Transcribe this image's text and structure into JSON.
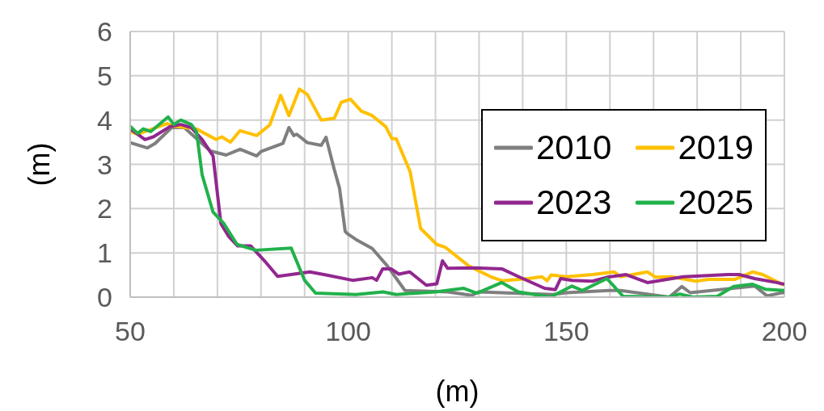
{
  "chart_data": {
    "type": "line",
    "xlabel": "(m)",
    "ylabel": "(m)",
    "xlim": [
      50,
      200
    ],
    "xticks": [
      50,
      {
        "value": 60,
        "label": null
      },
      {
        "value": 70,
        "label": null
      },
      {
        "value": 80,
        "label": null
      },
      {
        "value": 90,
        "label": null
      },
      100,
      {
        "value": 110,
        "label": null
      },
      {
        "value": 120,
        "label": null
      },
      {
        "value": 130,
        "label": null
      },
      {
        "value": 140,
        "label": null
      },
      150,
      {
        "value": 160,
        "label": null
      },
      {
        "value": 170,
        "label": null
      },
      {
        "value": 180,
        "label": null
      },
      {
        "value": 190,
        "label": null
      },
      200
    ],
    "ylim": [
      0,
      6
    ],
    "yticks": [
      0,
      1,
      2,
      3,
      4,
      5,
      6
    ],
    "grid": true,
    "legend": "right",
    "marker": "none",
    "line_style": "solid",
    "series": [
      {
        "name": "2010",
        "color": "#7f7f7f",
        "x": [
          50,
          53.9,
          55.7,
          59.5,
          62.4,
          68.4,
          72,
          75.2,
          79,
          80,
          85,
          86.4,
          87.5,
          88.2,
          90.6,
          93.8,
          94.9,
          96.8,
          98,
          99.3,
          100,
          101.8,
          105.5,
          109,
          113,
          122.8,
          128.3,
          130,
          140,
          147,
          150,
          159.8,
          162.4,
          173.6,
          176.5,
          178.4,
          193.2,
          196,
          199.5,
          200
        ],
        "values": [
          3.49,
          3.37,
          3.47,
          3.83,
          3.83,
          3.3,
          3.21,
          3.34,
          3.19,
          3.29,
          3.47,
          3.83,
          3.65,
          3.68,
          3.49,
          3.43,
          3.61,
          2.88,
          2.46,
          1.48,
          1.42,
          1.3,
          1.1,
          0.7,
          0.15,
          0.12,
          0.04,
          0.12,
          0.08,
          0.06,
          0.1,
          0.15,
          0.15,
          0.0,
          0.24,
          0.1,
          0.25,
          0.03,
          0.1,
          0.1
        ]
      },
      {
        "name": "2019",
        "color": "#ffc000",
        "x": [
          50,
          51.7,
          58.5,
          60,
          65.2,
          69.7,
          71,
          73,
          75.2,
          79,
          82,
          84.5,
          86.4,
          88.8,
          90.6,
          93.8,
          96.8,
          98.4,
          100.5,
          103,
          105.5,
          108.6,
          110,
          111,
          114.2,
          116.6,
          120.3,
          122.2,
          127.7,
          132.7,
          135.2,
          141.3,
          144.4,
          145.6,
          146.5,
          150,
          156,
          161,
          162.4,
          168.6,
          170.5,
          174.2,
          179.7,
          182.7,
          188.6,
          192.7,
          195,
          199.5,
          200
        ],
        "values": [
          3.74,
          3.68,
          3.92,
          3.86,
          3.8,
          3.56,
          3.62,
          3.5,
          3.76,
          3.65,
          3.89,
          4.56,
          4.1,
          4.7,
          4.58,
          4.0,
          4.04,
          4.4,
          4.47,
          4.2,
          4.1,
          3.85,
          3.58,
          3.58,
          2.83,
          1.55,
          1.19,
          1.13,
          0.7,
          0.46,
          0.37,
          0.42,
          0.46,
          0.37,
          0.5,
          0.46,
          0.51,
          0.57,
          0.46,
          0.57,
          0.45,
          0.46,
          0.36,
          0.4,
          0.4,
          0.57,
          0.51,
          0.29,
          0.29
        ]
      },
      {
        "name": "2023",
        "color": "#92278f",
        "x": [
          50,
          53.4,
          55.3,
          59.1,
          61.6,
          64,
          66.5,
          69,
          70.8,
          72.6,
          74.6,
          77.6,
          80.8,
          83.8,
          86.2,
          91.2,
          94.9,
          101,
          105.5,
          106.5,
          107.9,
          109.8,
          111.6,
          114.1,
          117.9,
          120.3,
          121.6,
          122.8,
          129,
          135.2,
          138.9,
          145,
          147.5,
          148.7,
          151.3,
          156,
          159.3,
          163.7,
          168.6,
          176.8,
          187.1,
          189.6,
          193.2,
          198.2,
          200
        ],
        "values": [
          3.8,
          3.56,
          3.62,
          3.85,
          3.9,
          3.83,
          3.56,
          3.19,
          1.66,
          1.37,
          1.16,
          1.16,
          0.82,
          0.47,
          0.5,
          0.57,
          0.5,
          0.38,
          0.44,
          0.38,
          0.64,
          0.64,
          0.52,
          0.57,
          0.27,
          0.3,
          0.82,
          0.65,
          0.66,
          0.64,
          0.47,
          0.2,
          0.17,
          0.42,
          0.38,
          0.36,
          0.45,
          0.51,
          0.33,
          0.46,
          0.51,
          0.51,
          0.42,
          0.33,
          0.29
        ]
      },
      {
        "name": "2025",
        "color": "#22b14c",
        "x": [
          50,
          51.7,
          53,
          54.7,
          58.7,
          60,
          61.6,
          64,
          65.2,
          66.5,
          69,
          71.5,
          74.5,
          78.8,
          86.9,
          90,
          92.5,
          101.8,
          108,
          111,
          120,
          126.5,
          129.5,
          135.2,
          139,
          146.3,
          151.3,
          153.7,
          159.3,
          163,
          173.6,
          176,
          179,
          184.6,
          188.4,
          192.7,
          195.6,
          200
        ],
        "values": [
          3.86,
          3.7,
          3.8,
          3.74,
          4.07,
          3.9,
          4.0,
          3.9,
          3.74,
          2.76,
          1.92,
          1.66,
          1.19,
          1.06,
          1.11,
          0.38,
          0.09,
          0.06,
          0.12,
          0.06,
          0.12,
          0.2,
          0.09,
          0.33,
          0.12,
          0.0,
          0.25,
          0.15,
          0.42,
          0.02,
          0.0,
          0.07,
          0.0,
          0.02,
          0.24,
          0.29,
          0.18,
          0.15
        ]
      }
    ]
  }
}
